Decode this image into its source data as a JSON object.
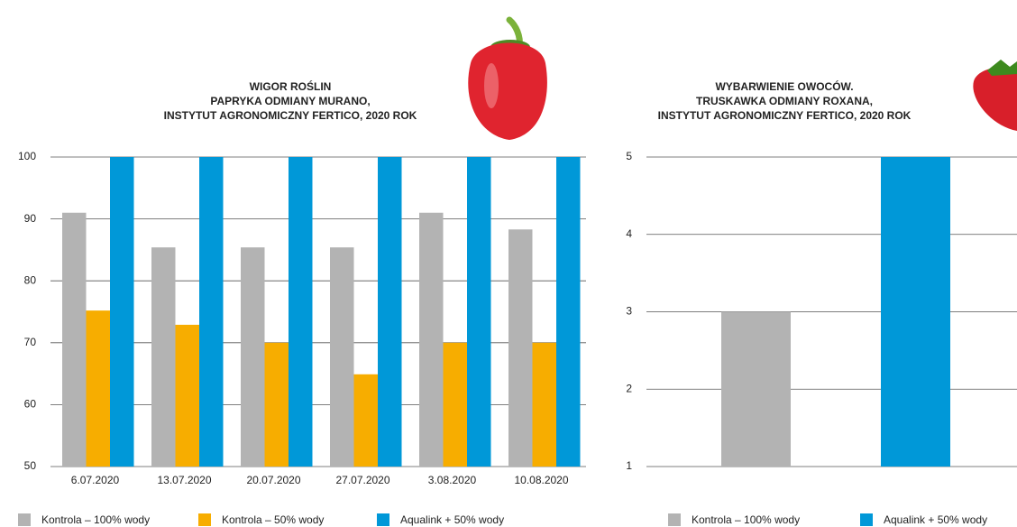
{
  "chart_data": [
    {
      "type": "bar",
      "title": [
        "WIGOR ROŚLIN",
        "PAPRYKA ODMIANY MURANO,",
        "INSTYTUT AGRONOMICZNY FERTICO, 2020 ROK"
      ],
      "categories": [
        "6.07.2020",
        "13.07.2020",
        "20.07.2020",
        "27.07.2020",
        "3.08.2020",
        "10.08.2020"
      ],
      "series": [
        {
          "name": "Kontrola – 100% wody",
          "color": "#b3b3b3",
          "values": [
            91,
            85.4,
            85.4,
            85.4,
            91,
            88.3
          ]
        },
        {
          "name": "Kontrola – 50% wody",
          "color": "#f7ad00",
          "values": [
            75.2,
            72.9,
            70,
            64.9,
            70,
            70
          ]
        },
        {
          "name": "Aqualink + 50% wody",
          "color": "#0098d8",
          "values": [
            100,
            100,
            100,
            100,
            100,
            100
          ]
        }
      ],
      "ylim": [
        50,
        100
      ],
      "yticks": [
        50,
        60,
        70,
        80,
        90,
        100
      ],
      "grid": true
    },
    {
      "type": "bar",
      "title": [
        "WYBARWIENIE OWOCÓW.",
        "TRUSKAWKA ODMIANY ROXANA,",
        "INSTYTUT AGRONOMICZNY FERTICO, 2020 ROK"
      ],
      "categories": [
        null
      ],
      "series": [
        {
          "name": "Kontrola – 100% wody",
          "color": "#b3b3b3",
          "values": [
            3
          ]
        },
        {
          "name": "Aqualink + 50% wody",
          "color": "#0098d8",
          "values": [
            5
          ]
        }
      ],
      "ylim": [
        1,
        5
      ],
      "yticks": [
        1,
        2,
        3,
        4,
        5
      ],
      "grid": true
    }
  ]
}
